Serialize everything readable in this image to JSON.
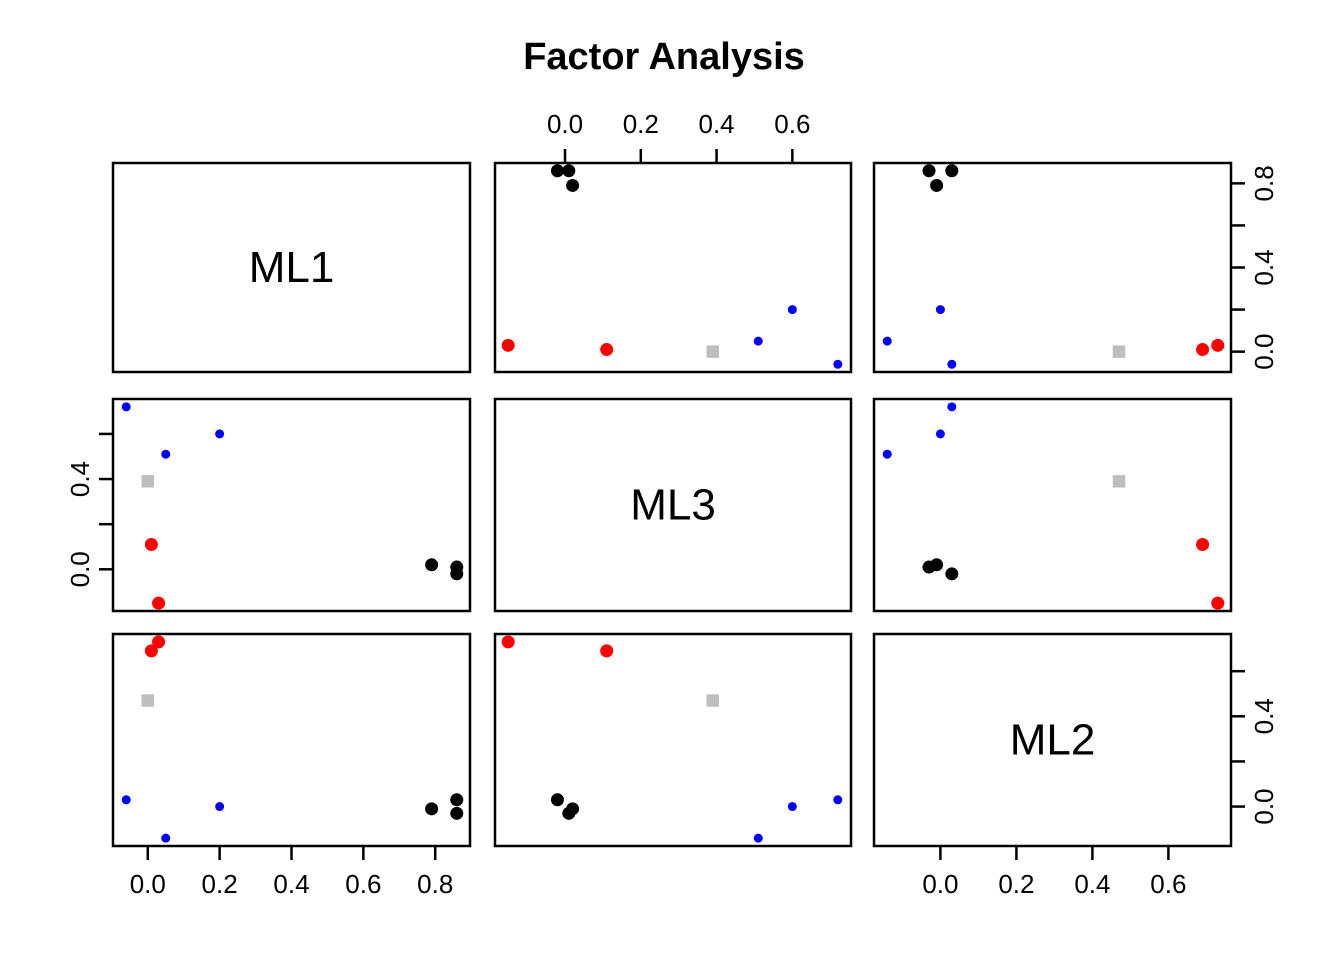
{
  "title": "Factor Analysis",
  "colors": {
    "background": "#FFFFFF",
    "foreground": "#000000",
    "group_ml1": "#000000",
    "group_ml2": "#FF0000",
    "group_ml3": "#0000FF",
    "group_unassigned": "#BEBEBE"
  },
  "chart_data": {
    "type": "scatter",
    "subtype": "pairs-scatterplot-matrix",
    "title": "Factor Analysis",
    "factors": [
      "ML1",
      "ML3",
      "ML2"
    ],
    "grid": false,
    "range_padding": 0.04,
    "groups": [
      {
        "name": "ml1-loading-variables",
        "color": "#000000",
        "shape": "circle",
        "radius": 6.5,
        "points": [
          {
            "ML1": 0.79,
            "ML3": 0.02,
            "ML2": -0.01
          },
          {
            "ML1": 0.86,
            "ML3": 0.01,
            "ML2": -0.03
          },
          {
            "ML1": 0.86,
            "ML3": -0.02,
            "ML2": 0.03
          }
        ]
      },
      {
        "name": "ml2-loading-variables",
        "color": "#FF0000",
        "shape": "circle",
        "radius": 6.5,
        "points": [
          {
            "ML1": 0.01,
            "ML3": 0.11,
            "ML2": 0.69
          },
          {
            "ML1": 0.03,
            "ML3": -0.15,
            "ML2": 0.73
          }
        ]
      },
      {
        "name": "ml3-loading-variables",
        "color": "#0000FF",
        "shape": "circle",
        "radius": 4.5,
        "points": [
          {
            "ML1": -0.06,
            "ML3": 0.72,
            "ML2": 0.03
          },
          {
            "ML1": 0.2,
            "ML3": 0.6,
            "ML2": 0.0
          },
          {
            "ML1": 0.05,
            "ML3": 0.51,
            "ML2": -0.14
          }
        ]
      },
      {
        "name": "unassigned-variable",
        "color": "#BEBEBE",
        "shape": "square",
        "radius": 6.25,
        "points": [
          {
            "ML1": 0.0,
            "ML3": 0.39,
            "ML2": 0.47
          }
        ]
      }
    ],
    "axes": {
      "ML1": {
        "tick_values": [
          0,
          0.2,
          0.4,
          0.6,
          0.8
        ],
        "column_side": "bottom",
        "column_tick_labels": [
          "0.0",
          "0.2",
          "0.4",
          "0.6",
          "0.8"
        ],
        "row_side": "right",
        "row_tick_labels": [
          "0.0",
          "",
          "0.4",
          "",
          "0.8"
        ]
      },
      "ML3": {
        "tick_values": [
          0,
          0.2,
          0.4,
          0.6
        ],
        "column_side": "top",
        "column_tick_labels": [
          "0.0",
          "0.2",
          "0.4",
          "0.6"
        ],
        "row_side": "left",
        "row_tick_labels": [
          "0.0",
          "",
          "0.4",
          ""
        ]
      },
      "ML2": {
        "tick_values": [
          0,
          0.2,
          0.4,
          0.6
        ],
        "column_side": "bottom",
        "column_tick_labels": [
          "0.0",
          "0.2",
          "0.4",
          "0.6"
        ],
        "row_side": "right",
        "row_tick_labels": [
          "0.0",
          "",
          "0.4",
          ""
        ]
      }
    }
  }
}
